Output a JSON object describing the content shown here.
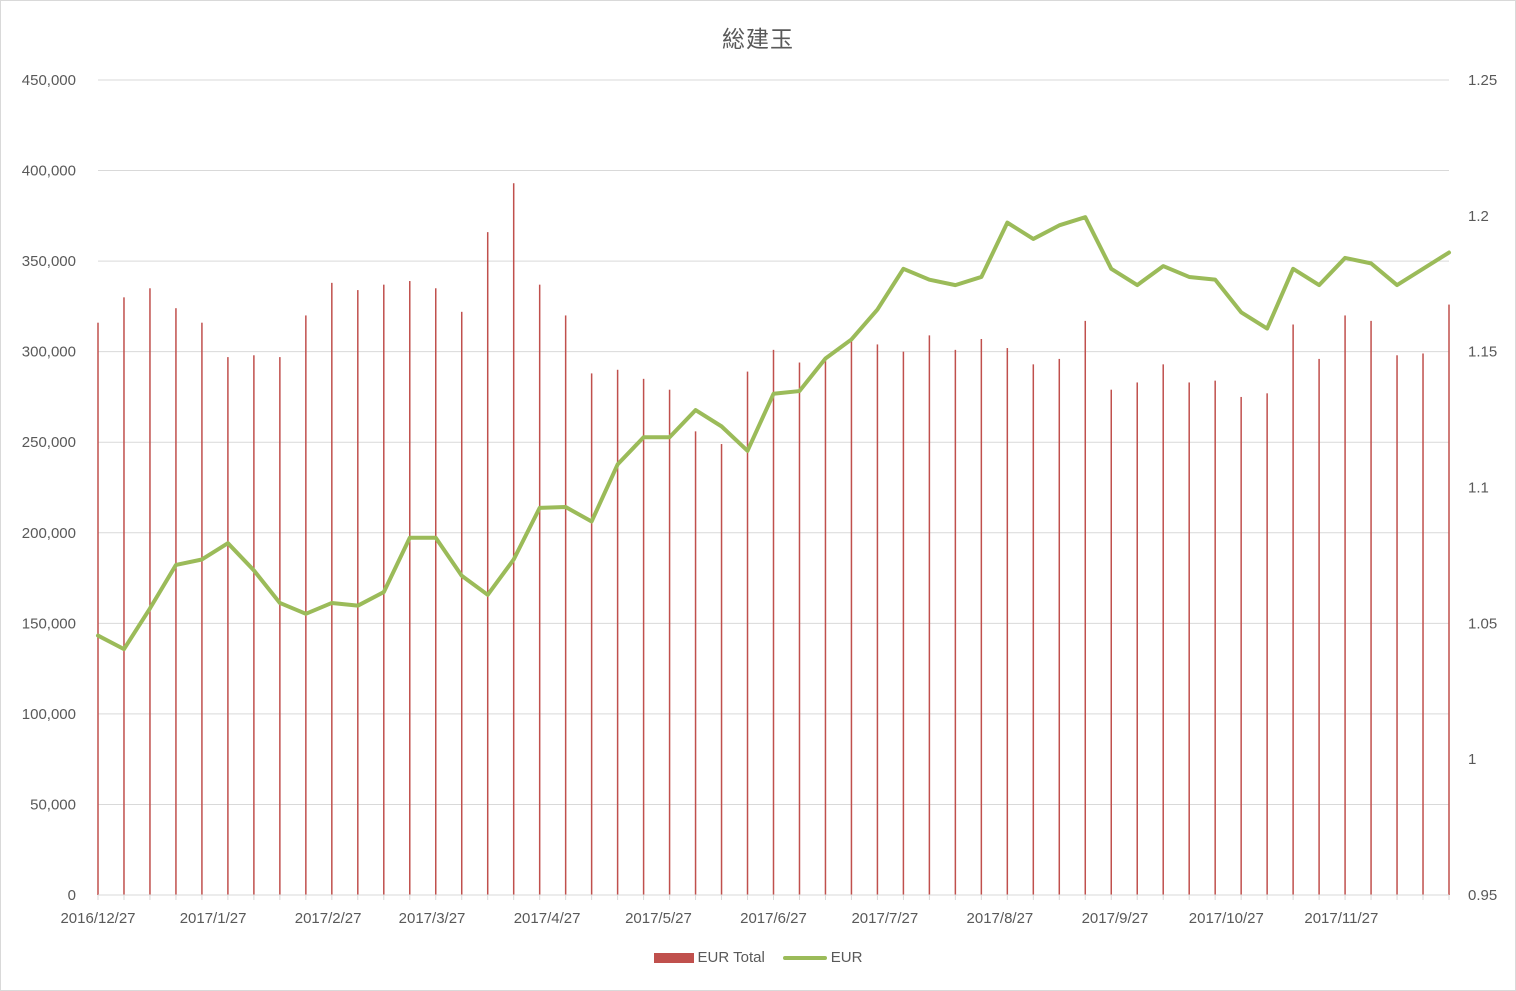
{
  "chart_data": {
    "type": "bar",
    "title": "総建玉",
    "xlabel": "",
    "ylabel": "",
    "ylim": [
      0,
      450000
    ],
    "y2lim": [
      0.95,
      1.25
    ],
    "y_ticks": [
      "0",
      "50,000",
      "100,000",
      "150,000",
      "200,000",
      "250,000",
      "300,000",
      "350,000",
      "400,000",
      "450,000"
    ],
    "y2_ticks": [
      "0.95",
      "1",
      "1.05",
      "1.1",
      "1.15",
      "1.2",
      "1.25"
    ],
    "x_tick_labels": [
      "2016/12/27",
      "2017/1/27",
      "2017/2/27",
      "2017/3/27",
      "2017/4/27",
      "2017/5/27",
      "2017/6/27",
      "2017/7/27",
      "2017/8/27",
      "2017/9/27",
      "2017/10/27",
      "2017/11/27"
    ],
    "x_tick_dates": [
      "2016-12-27",
      "2017-01-27",
      "2017-02-27",
      "2017-03-27",
      "2017-04-27",
      "2017-05-27",
      "2017-06-27",
      "2017-07-27",
      "2017-08-27",
      "2017-09-27",
      "2017-10-27",
      "2017-11-27"
    ],
    "x_range": [
      "2016-12-27",
      "2017-12-26"
    ],
    "grid": true,
    "legend_position": "bottom",
    "colors": {
      "bar": "#c0504d",
      "line": "#9bbb59",
      "grid": "#d9d9d9",
      "text": "#595959"
    },
    "dates": [
      "2016-12-27",
      "2017-01-03",
      "2017-01-10",
      "2017-01-17",
      "2017-01-24",
      "2017-01-31",
      "2017-02-07",
      "2017-02-14",
      "2017-02-21",
      "2017-02-28",
      "2017-03-07",
      "2017-03-14",
      "2017-03-21",
      "2017-03-28",
      "2017-04-04",
      "2017-04-11",
      "2017-04-18",
      "2017-04-25",
      "2017-05-02",
      "2017-05-09",
      "2017-05-16",
      "2017-05-23",
      "2017-05-30",
      "2017-06-06",
      "2017-06-13",
      "2017-06-20",
      "2017-06-27",
      "2017-07-04",
      "2017-07-11",
      "2017-07-18",
      "2017-07-25",
      "2017-08-01",
      "2017-08-08",
      "2017-08-15",
      "2017-08-22",
      "2017-08-29",
      "2017-09-05",
      "2017-09-12",
      "2017-09-19",
      "2017-09-26",
      "2017-10-03",
      "2017-10-10",
      "2017-10-17",
      "2017-10-24",
      "2017-10-31",
      "2017-11-07",
      "2017-11-14",
      "2017-11-21",
      "2017-11-28",
      "2017-12-05",
      "2017-12-12",
      "2017-12-19",
      "2017-12-26"
    ],
    "series": [
      {
        "name": "EUR Total",
        "type": "bar",
        "axis": "left",
        "values": [
          316000,
          330000,
          335000,
          324000,
          316000,
          297000,
          298000,
          297000,
          320000,
          338000,
          334000,
          337000,
          339000,
          335000,
          322000,
          366000,
          393000,
          337000,
          320000,
          288000,
          290000,
          285000,
          279000,
          256000,
          249000,
          289000,
          301000,
          294000,
          295000,
          306000,
          304000,
          300000,
          309000,
          301000,
          307000,
          302000,
          293000,
          296000,
          317000,
          279000,
          283000,
          293000,
          283000,
          284000,
          275000,
          277000,
          315000,
          296000,
          320000,
          317000,
          298000,
          299000,
          326000
        ]
      },
      {
        "name": "EUR",
        "type": "line",
        "axis": "right",
        "values": [
          1.0455,
          1.0405,
          1.0555,
          1.0715,
          1.0735,
          1.0795,
          1.0695,
          1.0575,
          1.0535,
          1.0575,
          1.0565,
          1.0615,
          1.0815,
          1.0815,
          1.0675,
          1.0605,
          1.0735,
          1.0925,
          1.0928,
          1.0875,
          1.1085,
          1.1185,
          1.1185,
          1.1285,
          1.1225,
          1.1135,
          1.1345,
          1.1355,
          1.1475,
          1.1545,
          1.1655,
          1.1805,
          1.1765,
          1.1745,
          1.1775,
          1.1975,
          1.1915,
          1.1965,
          1.1995,
          1.1805,
          1.1745,
          1.1815,
          1.1775,
          1.1765,
          1.1645,
          1.1585,
          1.1805,
          1.1745,
          1.1845,
          1.1825,
          1.1745,
          1.1805,
          1.1865
        ]
      }
    ]
  }
}
